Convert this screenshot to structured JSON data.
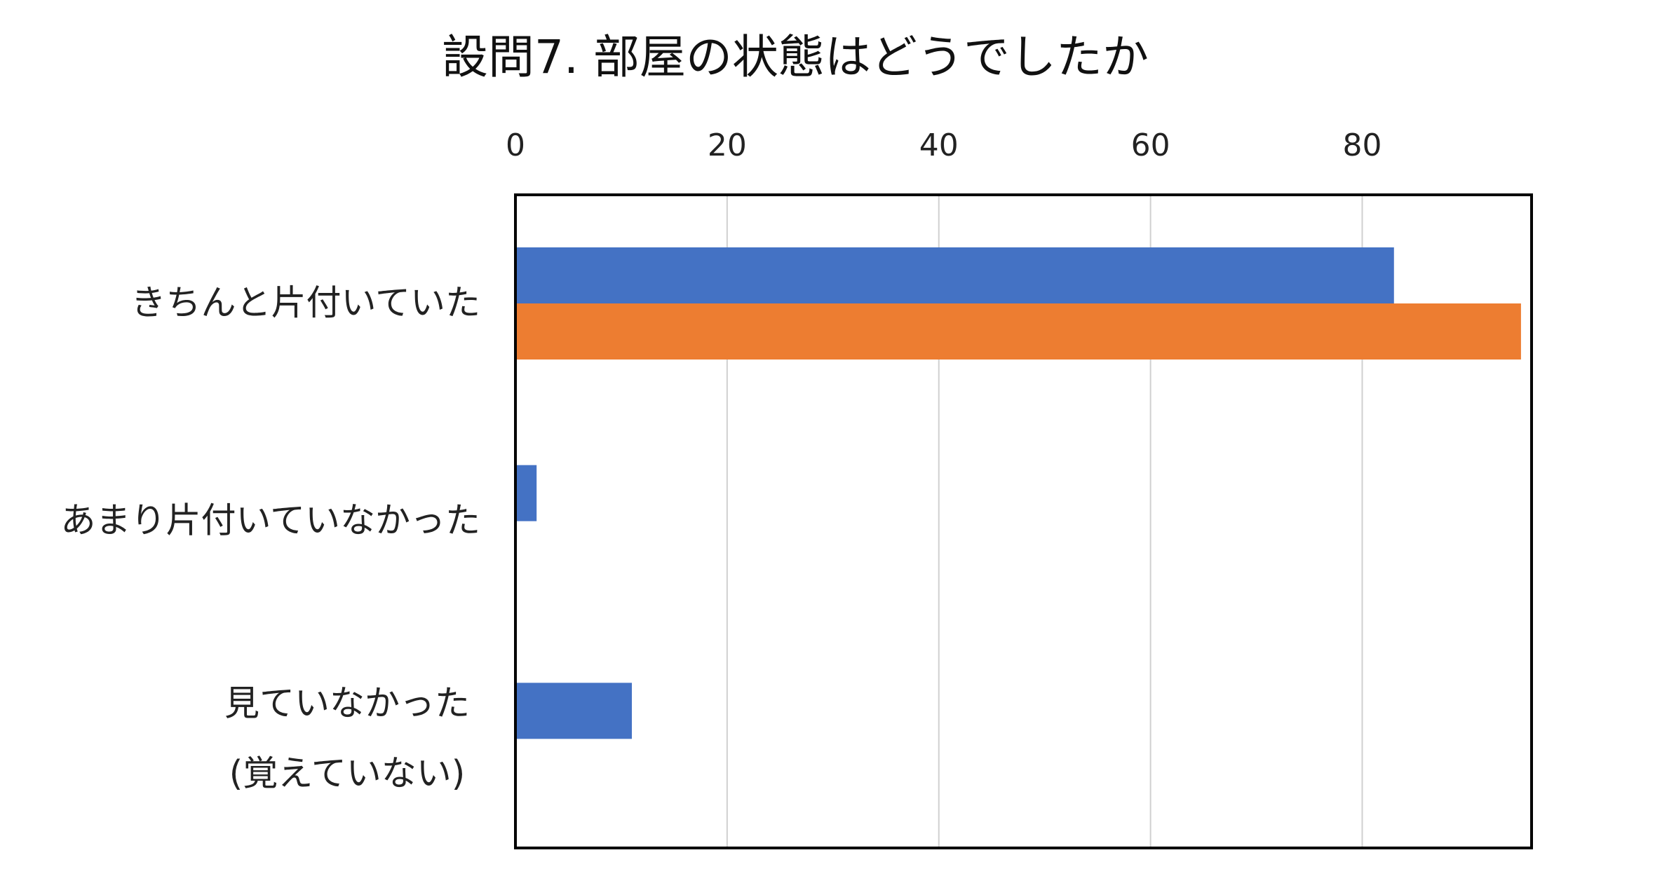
{
  "chart_data": {
    "type": "bar",
    "orientation": "horizontal",
    "title": "設問7. 部屋の状態はどうでしたか",
    "categories": [
      [
        "きちんと片付いていた"
      ],
      [
        "あまり片付いていなかった"
      ],
      [
        "見ていなかった",
        "(覚えていない)"
      ]
    ],
    "series": [
      {
        "color": "#4472C4",
        "values": [
          83,
          2,
          11
        ]
      },
      {
        "color": "#ED7D31",
        "values": [
          95,
          0,
          0
        ]
      }
    ],
    "xlim": [
      0,
      96
    ],
    "xticks": [
      "0",
      "20",
      "40",
      "60",
      "80"
    ],
    "tick_values": [
      0,
      20,
      40,
      60,
      80
    ],
    "axis_position": "top",
    "gridlines": true,
    "legend": "none"
  }
}
